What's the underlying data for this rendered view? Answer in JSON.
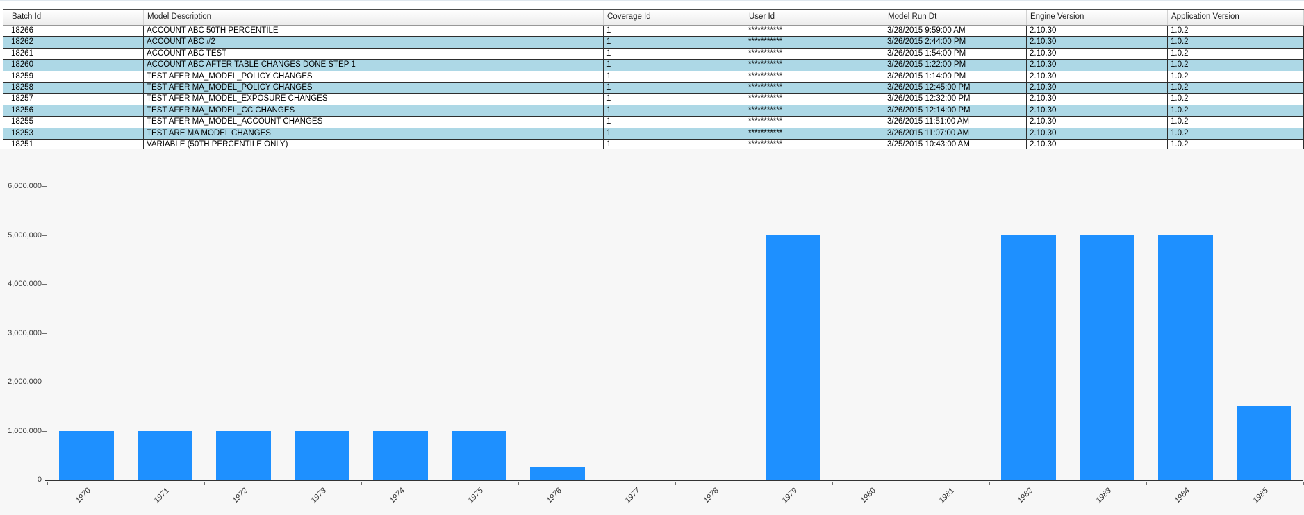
{
  "table": {
    "columns": [
      {
        "label": "Batch Id"
      },
      {
        "label": "Model Description"
      },
      {
        "label": "Coverage Id"
      },
      {
        "label": "User Id"
      },
      {
        "label": "Model Run Dt"
      },
      {
        "label": "Engine Version"
      },
      {
        "label": "Application Version"
      }
    ],
    "rows": [
      [
        "18266",
        "ACCOUNT ABC 50TH PERCENTILE",
        "1",
        "***********",
        "3/28/2015 9:59:00 AM",
        "2.10.30",
        "1.0.2"
      ],
      [
        "18262",
        "ACCOUNT ABC #2",
        "1",
        "***********",
        "3/26/2015 2:44:00 PM",
        "2.10.30",
        "1.0.2"
      ],
      [
        "18261",
        "ACCOUNT ABC TEST",
        "1",
        "***********",
        "3/26/2015 1:54:00 PM",
        "2.10.30",
        "1.0.2"
      ],
      [
        "18260",
        "ACCOUNT ABC AFTER TABLE CHANGES DONE STEP 1",
        "1",
        "***********",
        "3/26/2015 1:22:00 PM",
        "2.10.30",
        "1.0.2"
      ],
      [
        "18259",
        "TEST AFER MA_MODEL_POLICY CHANGES",
        "1",
        "***********",
        "3/26/2015 1:14:00 PM",
        "2.10.30",
        "1.0.2"
      ],
      [
        "18258",
        "TEST AFER MA_MODEL_POLICY CHANGES",
        "1",
        "***********",
        "3/26/2015 12:45:00 PM",
        "2.10.30",
        "1.0.2"
      ],
      [
        "18257",
        "TEST AFER MA_MODEL_EXPOSURE CHANGES",
        "1",
        "***********",
        "3/26/2015 12:32:00 PM",
        "2.10.30",
        "1.0.2"
      ],
      [
        "18256",
        "TEST AFER MA_MODEL_CC CHANGES",
        "1",
        "***********",
        "3/26/2015 12:14:00 PM",
        "2.10.30",
        "1.0.2"
      ],
      [
        "18255",
        "TEST AFER MA_MODEL_ACCOUNT CHANGES",
        "1",
        "***********",
        "3/26/2015 11:51:00 AM",
        "2.10.30",
        "1.0.2"
      ],
      [
        "18253",
        "TEST ARE MA MODEL CHANGES",
        "1",
        "***********",
        "3/26/2015 11:07:00 AM",
        "2.10.30",
        "1.0.2"
      ],
      [
        "18251",
        "VARIABLE (50TH PERCENTILE ONLY)",
        "1",
        "***********",
        "3/25/2015 10:43:00 AM",
        "2.10.30",
        "1.0.2"
      ]
    ]
  },
  "chart_data": {
    "type": "bar",
    "title": "",
    "xlabel": "",
    "ylabel": "",
    "categories": [
      "1970",
      "1971",
      "1972",
      "1973",
      "1974",
      "1975",
      "1976",
      "1977",
      "1978",
      "1979",
      "1980",
      "1981",
      "1982",
      "1983",
      "1984",
      "1985"
    ],
    "values": [
      1000000,
      1000000,
      1000000,
      1000000,
      1000000,
      1000000,
      250000,
      0,
      0,
      5000000,
      0,
      0,
      5000000,
      5000000,
      5000000,
      1500000
    ],
    "ylim": [
      0,
      6000000
    ],
    "y_tick_values": [
      0,
      1000000,
      2000000,
      3000000,
      4000000,
      5000000,
      6000000
    ],
    "y_tick_labels": [
      "0",
      "1,000,000",
      "2,000,000",
      "3,000,000",
      "4,000,000",
      "5,000,000",
      "6,000,000"
    ],
    "grid": false,
    "legend": false
  },
  "colors": {
    "bar": "#1E90FF",
    "row_alt": "#ADD8E6",
    "row_default": "#FFFFFF",
    "axis": "#6E6E6E",
    "chart_bg": "#F7F7F7"
  }
}
